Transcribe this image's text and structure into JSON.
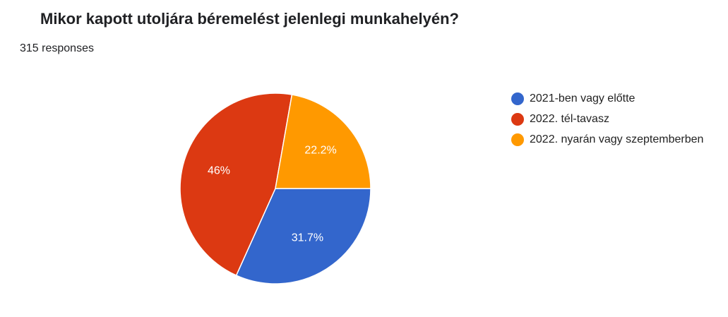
{
  "title": "Mikor kapott utoljára béremelést jelenlegi munkahelyén?",
  "responses_label": "315 responses",
  "chart_data": {
    "type": "pie",
    "title": "Mikor kapott utoljára béremelést jelenlegi munkahelyén?",
    "slices": [
      {
        "label": "2021-ben vagy előtte",
        "value": 31.7,
        "value_label": "31.7%",
        "color": "#3366cc"
      },
      {
        "label": "2022. tél-tavasz",
        "value": 46,
        "value_label": "46%",
        "color": "#dc3912"
      },
      {
        "label": "2022. nyarán vagy szeptemberben",
        "value": 22.2,
        "value_label": "22.2%",
        "color": "#ff9900"
      }
    ],
    "legend_position": "right"
  }
}
